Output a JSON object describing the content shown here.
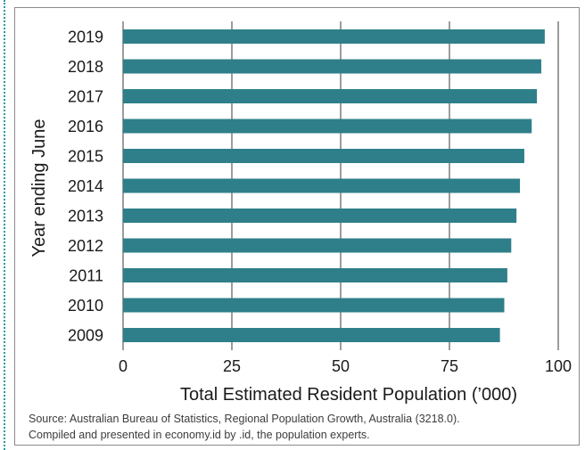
{
  "chart_data": {
    "type": "bar",
    "orientation": "horizontal",
    "categories": [
      "2019",
      "2018",
      "2017",
      "2016",
      "2015",
      "2014",
      "2013",
      "2012",
      "2011",
      "2010",
      "2009"
    ],
    "values": [
      96.9,
      96.1,
      95.1,
      93.9,
      92.2,
      91.2,
      90.4,
      89.2,
      88.3,
      87.6,
      86.6
    ],
    "xlabel": "Total Estimated Resident Population (’000)",
    "ylabel": "Year ending June",
    "xlim": [
      0,
      100
    ],
    "xticks": [
      "0",
      "25",
      "50",
      "75",
      "100"
    ],
    "bar_color": "#2e7f89",
    "grid": "vertical"
  },
  "source": {
    "line1": "Source: Australian Bureau of Statistics, Regional Population Growth, Australia (3218.0).",
    "line2": "Compiled and presented in economy.id by .id, the population experts."
  }
}
